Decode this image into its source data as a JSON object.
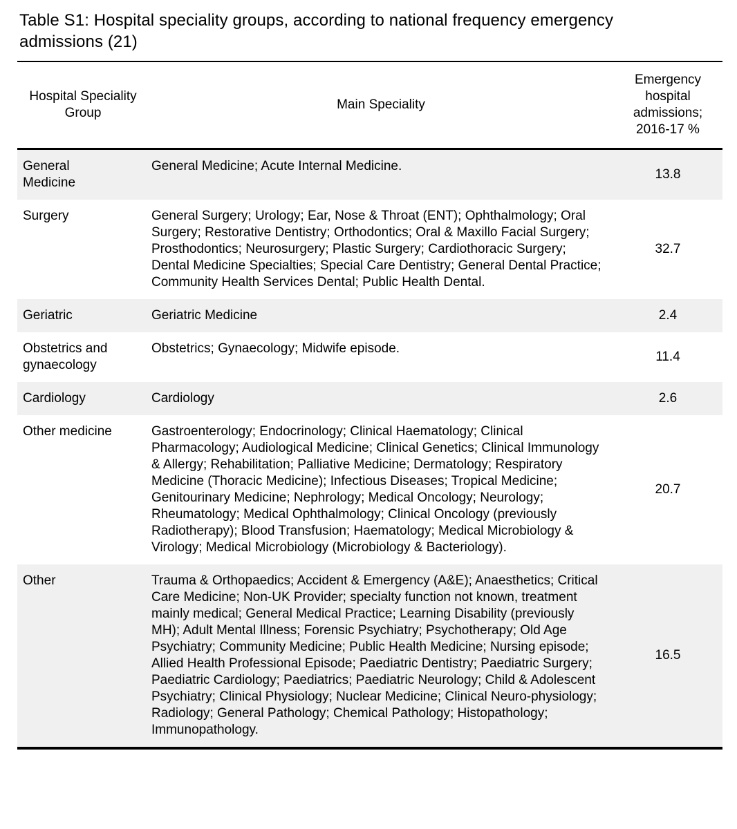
{
  "title": "Table S1: Hospital speciality groups, according to national frequency emergency admissions (21)",
  "colors": {
    "background": "#ffffff",
    "alt_row_background": "#f0f0f0",
    "rule_color": "#000000",
    "text_color": "#000000"
  },
  "table": {
    "columns": {
      "group": "Hospital Speciality Group",
      "speciality": "Main Speciality",
      "admissions": "Emergency hospital admissions; 2016-17 %"
    },
    "rows": [
      {
        "group": "General Medicine",
        "speciality": "General Medicine; Acute Internal Medicine.",
        "admissions": "13.8"
      },
      {
        "group": "Surgery",
        "speciality": "General Surgery; Urology; Ear, Nose & Throat (ENT); Ophthalmology; Oral Surgery; Restorative Dentistry; Orthodontics; Oral & Maxillo Facial Surgery; Prosthodontics; Neurosurgery; Plastic Surgery; Cardiothoracic Surgery; Dental Medicine Specialties; Special Care Dentistry; General Dental Practice; Community Health Services Dental; Public Health Dental.",
        "admissions": "32.7"
      },
      {
        "group": "Geriatric",
        "speciality": "Geriatric Medicine",
        "admissions": "2.4"
      },
      {
        "group": "Obstetrics and gynaecology",
        "speciality": "Obstetrics; Gynaecology; Midwife episode.",
        "admissions": "11.4"
      },
      {
        "group": "Cardiology",
        "speciality": "Cardiology",
        "admissions": "2.6"
      },
      {
        "group": "Other medicine",
        "speciality": "Gastroenterology; Endocrinology; Clinical Haematology; Clinical Pharmacology; Audiological Medicine; Clinical Genetics; Clinical Immunology & Allergy; Rehabilitation; Palliative Medicine; Dermatology; Respiratory Medicine (Thoracic Medicine); Infectious Diseases; Tropical Medicine; Genitourinary Medicine; Nephrology; Medical Oncology; Neurology; Rheumatology; Medical Ophthalmology; Clinical Oncology (previously Radiotherapy); Blood Transfusion; Haematology; Medical Microbiology & Virology; Medical Microbiology (Microbiology & Bacteriology).",
        "admissions": "20.7"
      },
      {
        "group": "Other",
        "speciality": "Trauma & Orthopaedics; Accident & Emergency (A&E); Anaesthetics; Critical Care Medicine; Non-UK Provider; specialty function not known, treatment mainly medical; General Medical Practice; Learning Disability (previously MH); Adult Mental Illness; Forensic Psychiatry; Psychotherapy; Old Age Psychiatry; Community Medicine; Public Health Medicine; Nursing episode; Allied Health Professional Episode; Paediatric Dentistry; Paediatric Surgery; Paediatric Cardiology; Paediatrics; Paediatric Neurology; Child & Adolescent Psychiatry; Clinical Physiology; Nuclear Medicine; Clinical Neuro-physiology; Radiology; General Pathology; Chemical Pathology; Histopathology; Immunopathology.",
        "admissions": "16.5"
      }
    ]
  }
}
